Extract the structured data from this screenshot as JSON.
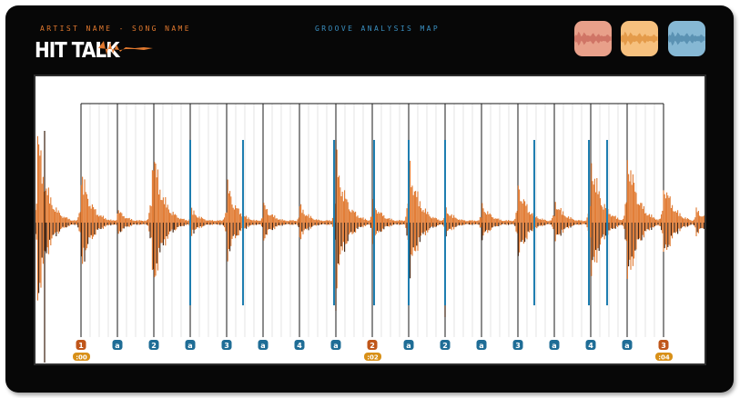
{
  "header": {
    "artist_song": "ARTIST NAME - SONG NAME",
    "groove_title": "GROOVE ANALYSIS MAP",
    "logo_text": "HIT TALK"
  },
  "thumbnails": [
    {
      "name": "thumbnail-red",
      "color": "#e8a08a",
      "wave": "#c8675a"
    },
    {
      "name": "thumbnail-orange",
      "color": "#f6c07e",
      "wave": "#de8f3a"
    },
    {
      "name": "thumbnail-blue",
      "color": "#86b8d4",
      "wave": "#4c86a8"
    }
  ],
  "colors": {
    "waveform": "#e0782e",
    "waveform_dark": "#3a1d0c",
    "beat_marker": "#c0561a",
    "sub_marker": "#1f6d96",
    "hit_line": "#1f7eb0",
    "time_label": "#d89018"
  },
  "beat_markers": [
    "1",
    "a",
    "2",
    "a",
    "3",
    "a",
    "4",
    "a",
    "2",
    "a",
    "2",
    "a",
    "3",
    "a",
    "4",
    "a",
    "3"
  ],
  "time_labels": [
    ":00",
    ":02",
    ":04"
  ]
}
